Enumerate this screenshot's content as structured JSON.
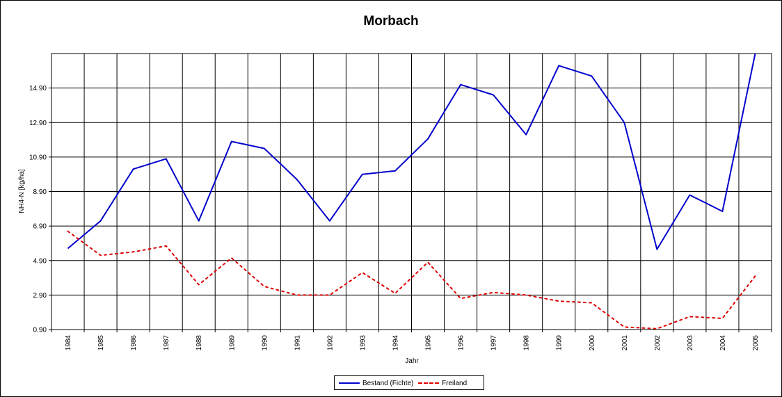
{
  "chart_data": {
    "type": "line",
    "title": "Morbach",
    "xlabel": "Jahr",
    "ylabel": "NH4-N [kg/ha]",
    "ylim": [
      0.9,
      16.9
    ],
    "yticks": [
      "0.90",
      "2.90",
      "4.90",
      "6.90",
      "8.90",
      "10.90",
      "12.90",
      "14.90"
    ],
    "categories": [
      "1984",
      "1985",
      "1986",
      "1987",
      "1988",
      "1989",
      "1990",
      "1991",
      "1992",
      "1993",
      "1994",
      "1995",
      "1996",
      "1997",
      "1998",
      "1999",
      "2000",
      "2001",
      "2002",
      "2003",
      "2004",
      "2005"
    ],
    "grid": true,
    "legend_position": "bottom",
    "series": [
      {
        "name": "Bestand (Fichte)",
        "color": "#0000CC",
        "style": "solid",
        "values": [
          5.6,
          7.2,
          10.2,
          10.8,
          7.2,
          11.8,
          11.4,
          9.6,
          7.2,
          9.9,
          10.1,
          11.95,
          15.1,
          14.5,
          12.2,
          16.2,
          15.6,
          12.9,
          5.55,
          8.7,
          7.75,
          16.9
        ]
      },
      {
        "name": "Freiland",
        "color": "#DD0000",
        "style": "dashed",
        "values": [
          6.6,
          5.2,
          5.4,
          5.75,
          3.5,
          5.05,
          3.4,
          2.9,
          2.9,
          4.2,
          3.0,
          4.8,
          2.7,
          3.05,
          2.9,
          2.55,
          2.45,
          1.05,
          0.95,
          1.65,
          1.55,
          4.0
        ]
      }
    ]
  }
}
